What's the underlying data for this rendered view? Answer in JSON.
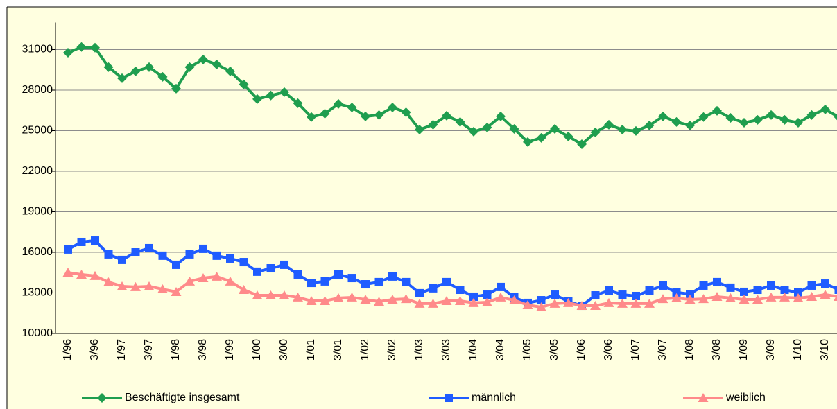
{
  "chart_data": {
    "type": "line",
    "categories": [
      "1/96",
      null,
      "3/96",
      null,
      "1/97",
      null,
      "3/97",
      null,
      "1/98",
      null,
      "3/98",
      null,
      "1/99",
      null,
      "1/00",
      null,
      "3/00",
      null,
      "1/01",
      null,
      "3/01",
      null,
      "1/02",
      null,
      "3/02",
      null,
      "1/03",
      null,
      "3/03",
      null,
      "1/04",
      null,
      "3/04",
      null,
      "1/05",
      null,
      "3/05",
      null,
      "1/06",
      null,
      "3/06",
      null,
      "1/07",
      null,
      "3/07",
      null,
      "1/08",
      null,
      "3/08",
      null,
      "1/09",
      null,
      "3/09",
      null,
      "1/10",
      null,
      "3/10",
      null
    ],
    "series": [
      {
        "name": "Beschäftigte insgesamt",
        "color": "#1f9e4f",
        "marker": "diamond",
        "values": [
          30770,
          31190,
          31140,
          29700,
          28880,
          29390,
          29700,
          28980,
          28110,
          29700,
          30260,
          29900,
          29390,
          28420,
          27340,
          27600,
          27850,
          27030,
          26010,
          26260,
          26980,
          26720,
          26060,
          26160,
          26720,
          26360,
          25080,
          25440,
          26110,
          25650,
          24930,
          25240,
          26060,
          25130,
          24160,
          24470,
          25130,
          24570,
          24000,
          24880,
          25440,
          25080,
          24980,
          25390,
          26060,
          25650,
          25390,
          26010,
          26470,
          25950,
          25590,
          25800,
          26160,
          25800,
          25590,
          26160,
          26570,
          26010
        ]
      },
      {
        "name": "männlich",
        "color": "#1f5cff",
        "marker": "square",
        "values": [
          16210,
          16770,
          16870,
          15850,
          15440,
          16000,
          16310,
          15750,
          15080,
          15850,
          16260,
          15750,
          15540,
          15280,
          14570,
          14820,
          15080,
          14360,
          13740,
          13850,
          14360,
          14100,
          13640,
          13800,
          14210,
          13800,
          12980,
          13340,
          13800,
          13230,
          12720,
          12870,
          13440,
          12670,
          12260,
          12460,
          12870,
          12360,
          12050,
          12820,
          13180,
          12870,
          12770,
          13180,
          13540,
          13030,
          12920,
          13540,
          13800,
          13390,
          13080,
          13230,
          13540,
          13230,
          13030,
          13540,
          13690,
          13230
        ]
      },
      {
        "name": "weiblich",
        "color": "#ff8a8a",
        "marker": "triangle",
        "values": [
          14510,
          14360,
          14260,
          13800,
          13490,
          13440,
          13490,
          13280,
          13080,
          13850,
          14100,
          14210,
          13850,
          13230,
          12820,
          12820,
          12820,
          12670,
          12410,
          12410,
          12620,
          12670,
          12510,
          12360,
          12510,
          12560,
          12210,
          12210,
          12410,
          12410,
          12260,
          12310,
          12670,
          12460,
          12100,
          11950,
          12210,
          12260,
          12050,
          12050,
          12260,
          12210,
          12210,
          12210,
          12560,
          12620,
          12510,
          12560,
          12720,
          12620,
          12510,
          12510,
          12670,
          12670,
          12620,
          12720,
          12870,
          12720
        ]
      }
    ],
    "ylim": [
      10000,
      33000
    ],
    "yticks": [
      10000,
      13000,
      16000,
      19000,
      22000,
      25000,
      28000,
      31000
    ],
    "grid": true,
    "legend": "bottom"
  }
}
